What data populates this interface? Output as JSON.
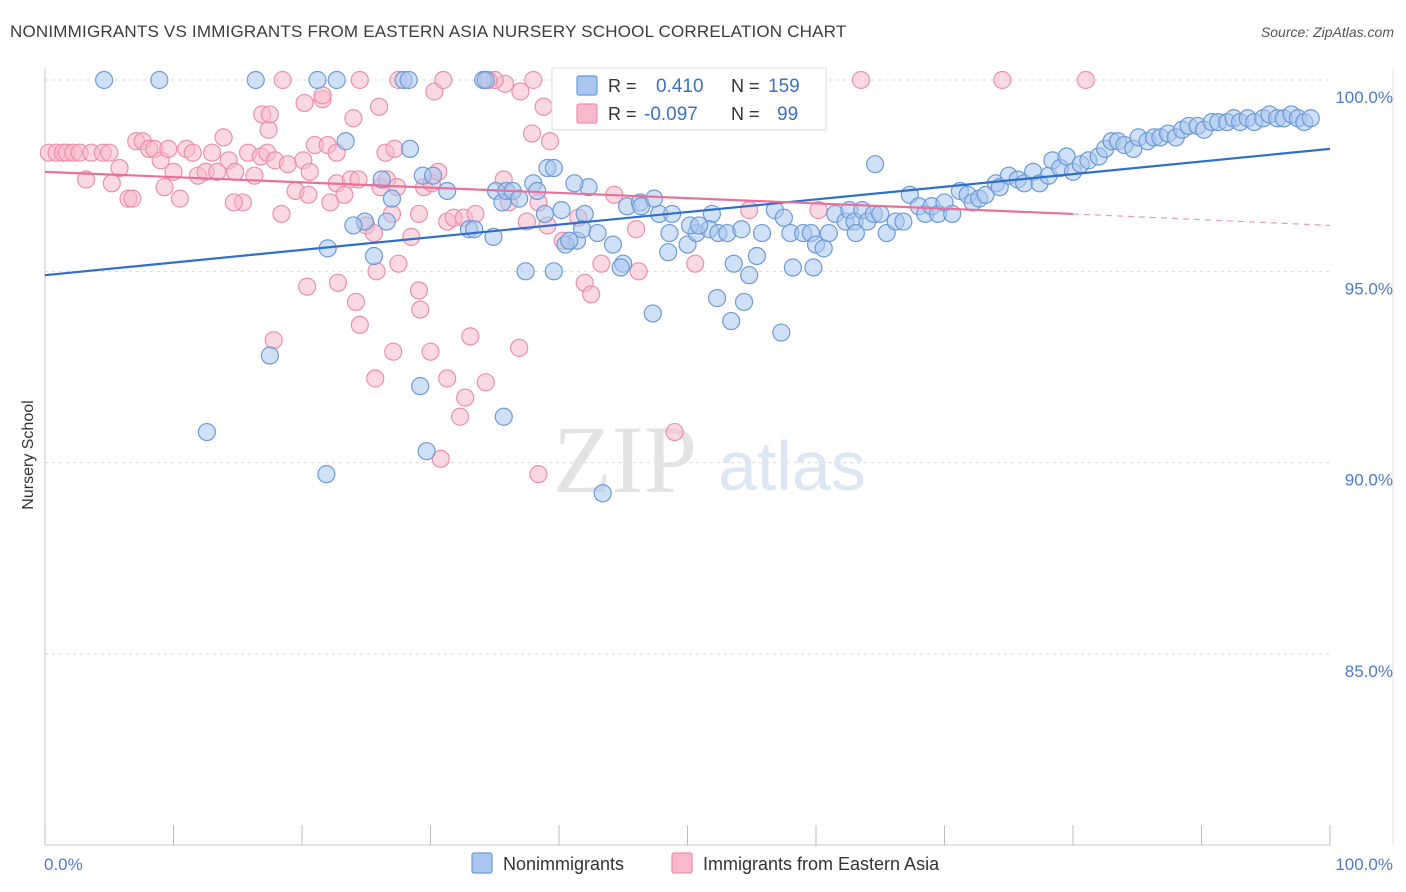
{
  "title": "NONIMMIGRANTS VS IMMIGRANTS FROM EASTERN ASIA NURSERY SCHOOL CORRELATION CHART",
  "source": "Source: ZipAtlas.com",
  "watermark": {
    "zip": "ZIP",
    "atlas": "atlas"
  },
  "colors": {
    "blue_fill": "#a9c6ef",
    "blue_stroke": "#6b9bd8",
    "blue_line": "#2f6fcb",
    "pink_fill": "#f7b9cb",
    "pink_stroke": "#ec8fae",
    "pink_line": "#e8709a",
    "tick_text": "#4a7cc9"
  },
  "legend_box": {
    "row1": {
      "r_label": "R =",
      "r_value": "0.410",
      "n_label": "N =",
      "n_value": "159"
    },
    "row2": {
      "r_label": "R =",
      "r_value": "-0.097",
      "n_label": "N =",
      "n_value": "99"
    }
  },
  "chart_data": {
    "type": "scatter",
    "title": "NONIMMIGRANTS VS IMMIGRANTS FROM EASTERN ASIA NURSERY SCHOOL CORRELATION CHART",
    "xlabel": "",
    "ylabel": "Nursery School",
    "xlim": [
      0,
      100
    ],
    "ylim": [
      80.5,
      100.5
    ],
    "x_tick_labels": [
      "0.0%",
      "100.0%"
    ],
    "y_ticks": [
      85,
      90,
      95,
      100
    ],
    "y_tick_labels": [
      "85.0%",
      "90.0%",
      "95.0%",
      "100.0%"
    ],
    "grid": true,
    "legend_position": "bottom",
    "series": [
      {
        "name": "Nonimmigrants",
        "color": "#6b9bd8",
        "trend": {
          "x": [
            0,
            100
          ],
          "y": [
            94.9,
            98.2
          ]
        },
        "points": [
          [
            4.6,
            100
          ],
          [
            8.9,
            100
          ],
          [
            16.4,
            100
          ],
          [
            21.2,
            100
          ],
          [
            22.7,
            100
          ],
          [
            27.9,
            100
          ],
          [
            28.3,
            100
          ],
          [
            34.1,
            100
          ],
          [
            34.3,
            100
          ],
          [
            23.4,
            98.4
          ],
          [
            28.4,
            98.2
          ],
          [
            29.4,
            97.5
          ],
          [
            30.2,
            97.5
          ],
          [
            26.2,
            97.4
          ],
          [
            31.3,
            97.1
          ],
          [
            27.0,
            96.9
          ],
          [
            24.9,
            96.3
          ],
          [
            26.6,
            96.3
          ],
          [
            24.0,
            96.2
          ],
          [
            22.0,
            95.6
          ],
          [
            25.6,
            95.4
          ],
          [
            33.0,
            96.1
          ],
          [
            33.4,
            96.1
          ],
          [
            34.9,
            95.9
          ],
          [
            35.1,
            97.1
          ],
          [
            35.6,
            96.8
          ],
          [
            35.9,
            97.1
          ],
          [
            36.4,
            97.1
          ],
          [
            38.0,
            97.3
          ],
          [
            39.1,
            97.7
          ],
          [
            39.6,
            97.7
          ],
          [
            42.3,
            97.2
          ],
          [
            42.0,
            96.5
          ],
          [
            41.4,
            95.8
          ],
          [
            40.5,
            95.7
          ],
          [
            40.8,
            95.8
          ],
          [
            41.8,
            96.1
          ],
          [
            44.2,
            95.7
          ],
          [
            45.3,
            96.7
          ],
          [
            46.3,
            96.8
          ],
          [
            47.8,
            96.5
          ],
          [
            48.8,
            96.5
          ],
          [
            48.6,
            96.0
          ],
          [
            50.0,
            95.7
          ],
          [
            50.7,
            96.0
          ],
          [
            51.9,
            96.5
          ],
          [
            51.7,
            96.1
          ],
          [
            52.4,
            96.0
          ],
          [
            53.1,
            96.0
          ],
          [
            53.6,
            95.2
          ],
          [
            54.2,
            96.1
          ],
          [
            54.8,
            94.9
          ],
          [
            54.4,
            94.2
          ],
          [
            55.4,
            95.4
          ],
          [
            55.8,
            96.0
          ],
          [
            56.8,
            96.6
          ],
          [
            57.5,
            96.4
          ],
          [
            58.0,
            96.0
          ],
          [
            59.0,
            96.0
          ],
          [
            59.6,
            96.0
          ],
          [
            60.0,
            95.7
          ],
          [
            60.6,
            95.6
          ],
          [
            61.0,
            96.0
          ],
          [
            61.5,
            96.5
          ],
          [
            62.3,
            96.3
          ],
          [
            62.6,
            96.6
          ],
          [
            63.0,
            96.3
          ],
          [
            63.6,
            96.6
          ],
          [
            64.0,
            96.3
          ],
          [
            64.5,
            96.5
          ],
          [
            65.0,
            96.5
          ],
          [
            65.5,
            96.0
          ],
          [
            66.2,
            96.3
          ],
          [
            66.8,
            96.3
          ],
          [
            67.3,
            97.0
          ],
          [
            68.0,
            96.7
          ],
          [
            68.5,
            96.5
          ],
          [
            69.0,
            96.7
          ],
          [
            69.5,
            96.5
          ],
          [
            70.0,
            96.8
          ],
          [
            70.6,
            96.5
          ],
          [
            71.2,
            97.1
          ],
          [
            71.8,
            97.0
          ],
          [
            72.2,
            96.8
          ],
          [
            72.7,
            96.9
          ],
          [
            73.2,
            97.0
          ],
          [
            74.0,
            97.3
          ],
          [
            74.3,
            97.2
          ],
          [
            75.0,
            97.5
          ],
          [
            75.7,
            97.4
          ],
          [
            76.2,
            97.3
          ],
          [
            76.9,
            97.6
          ],
          [
            77.4,
            97.3
          ],
          [
            78.1,
            97.5
          ],
          [
            78.4,
            97.9
          ],
          [
            79.0,
            97.7
          ],
          [
            79.5,
            98.0
          ],
          [
            80.0,
            97.6
          ],
          [
            80.6,
            97.8
          ],
          [
            81.2,
            97.9
          ],
          [
            82.0,
            98.0
          ],
          [
            82.5,
            98.2
          ],
          [
            83.0,
            98.4
          ],
          [
            83.5,
            98.4
          ],
          [
            84.0,
            98.3
          ],
          [
            84.7,
            98.2
          ],
          [
            85.1,
            98.5
          ],
          [
            85.8,
            98.4
          ],
          [
            86.3,
            98.5
          ],
          [
            86.8,
            98.5
          ],
          [
            87.4,
            98.6
          ],
          [
            88.0,
            98.5
          ],
          [
            88.5,
            98.7
          ],
          [
            89.0,
            98.8
          ],
          [
            89.7,
            98.8
          ],
          [
            90.2,
            98.7
          ],
          [
            90.8,
            98.9
          ],
          [
            91.3,
            98.9
          ],
          [
            92.0,
            98.9
          ],
          [
            92.5,
            99.0
          ],
          [
            93.0,
            98.9
          ],
          [
            93.6,
            99.0
          ],
          [
            94.1,
            98.9
          ],
          [
            94.8,
            99.0
          ],
          [
            95.3,
            99.1
          ],
          [
            95.9,
            99.0
          ],
          [
            96.4,
            99.0
          ],
          [
            97.0,
            99.1
          ],
          [
            97.5,
            99.0
          ],
          [
            98.0,
            98.9
          ],
          [
            98.5,
            99.0
          ],
          [
            12.6,
            90.8
          ],
          [
            17.5,
            92.8
          ],
          [
            21.9,
            89.7
          ],
          [
            29.2,
            92.0
          ],
          [
            29.7,
            90.3
          ],
          [
            35.7,
            91.2
          ],
          [
            37.4,
            95.0
          ],
          [
            39.6,
            95.0
          ],
          [
            43.4,
            89.2
          ],
          [
            45.0,
            95.2
          ],
          [
            47.3,
            93.9
          ],
          [
            48.5,
            95.5
          ],
          [
            50.2,
            96.2
          ],
          [
            46.4,
            96.7
          ],
          [
            47.4,
            96.9
          ],
          [
            52.3,
            94.3
          ],
          [
            57.3,
            93.4
          ],
          [
            58.2,
            95.1
          ],
          [
            59.8,
            95.1
          ],
          [
            63.1,
            96.0
          ],
          [
            64.6,
            97.8
          ],
          [
            36.9,
            96.9
          ],
          [
            38.3,
            97.1
          ],
          [
            38.9,
            96.5
          ],
          [
            40.2,
            96.6
          ],
          [
            41.2,
            97.3
          ],
          [
            43.0,
            96.0
          ],
          [
            44.8,
            95.1
          ],
          [
            50.9,
            96.2
          ],
          [
            53.4,
            93.7
          ]
        ]
      },
      {
        "name": "Immigrants from Eastern Asia",
        "color": "#ec8fae",
        "trend": {
          "x": [
            0,
            80
          ],
          "y": [
            97.6,
            96.5
          ]
        },
        "trend_dashed": {
          "x": [
            80,
            100
          ],
          "y": [
            96.5,
            96.2
          ]
        },
        "points": [
          [
            0.3,
            98.1
          ],
          [
            0.9,
            98.1
          ],
          [
            1.4,
            98.1
          ],
          [
            1.7,
            98.1
          ],
          [
            2.2,
            98.1
          ],
          [
            2.7,
            98.1
          ],
          [
            3.6,
            98.1
          ],
          [
            4.5,
            98.1
          ],
          [
            5.0,
            98.1
          ],
          [
            3.2,
            97.4
          ],
          [
            5.2,
            97.3
          ],
          [
            5.8,
            97.7
          ],
          [
            6.5,
            96.9
          ],
          [
            6.8,
            96.9
          ],
          [
            7.1,
            98.4
          ],
          [
            7.6,
            98.4
          ],
          [
            8.1,
            98.2
          ],
          [
            8.5,
            98.2
          ],
          [
            9.0,
            97.9
          ],
          [
            9.3,
            97.2
          ],
          [
            9.6,
            98.2
          ],
          [
            10.0,
            97.6
          ],
          [
            10.5,
            96.9
          ],
          [
            11.0,
            98.2
          ],
          [
            11.5,
            98.1
          ],
          [
            11.9,
            97.5
          ],
          [
            12.5,
            97.6
          ],
          [
            13.0,
            98.1
          ],
          [
            13.4,
            97.6
          ],
          [
            13.9,
            98.5
          ],
          [
            14.3,
            97.9
          ],
          [
            14.8,
            97.6
          ],
          [
            15.4,
            96.8
          ],
          [
            15.8,
            98.1
          ],
          [
            16.3,
            97.5
          ],
          [
            16.8,
            98.0
          ],
          [
            17.3,
            98.1
          ],
          [
            17.9,
            97.9
          ],
          [
            18.4,
            96.5
          ],
          [
            18.9,
            97.8
          ],
          [
            19.5,
            97.1
          ],
          [
            20.1,
            97.9
          ],
          [
            20.6,
            97.6
          ],
          [
            21.0,
            98.3
          ],
          [
            21.6,
            99.5
          ],
          [
            22.2,
            96.8
          ],
          [
            22.7,
            97.3
          ],
          [
            23.3,
            97.0
          ],
          [
            23.8,
            97.4
          ],
          [
            24.4,
            97.4
          ],
          [
            25.0,
            96.2
          ],
          [
            25.6,
            96.0
          ],
          [
            26.1,
            97.2
          ],
          [
            26.6,
            97.4
          ],
          [
            27.0,
            96.5
          ],
          [
            27.4,
            97.2
          ],
          [
            28.5,
            95.9
          ],
          [
            29.1,
            96.5
          ],
          [
            29.5,
            97.2
          ],
          [
            30.1,
            97.3
          ],
          [
            30.6,
            97.6
          ],
          [
            31.3,
            96.3
          ],
          [
            31.8,
            96.4
          ],
          [
            32.6,
            96.4
          ],
          [
            33.5,
            96.5
          ],
          [
            35.7,
            97.4
          ],
          [
            36.1,
            96.8
          ],
          [
            37.5,
            96.3
          ],
          [
            38.4,
            96.8
          ],
          [
            39.1,
            96.2
          ],
          [
            40.3,
            95.8
          ],
          [
            41.5,
            96.4
          ],
          [
            42.0,
            94.7
          ],
          [
            42.5,
            94.4
          ],
          [
            43.3,
            95.2
          ],
          [
            44.3,
            97.0
          ],
          [
            46.0,
            96.1
          ],
          [
            50.6,
            95.2
          ],
          [
            54.8,
            96.6
          ],
          [
            60.2,
            96.6
          ],
          [
            16.9,
            99.1
          ],
          [
            17.4,
            98.7
          ],
          [
            26.0,
            99.3
          ],
          [
            30.3,
            99.7
          ],
          [
            37.0,
            99.7
          ],
          [
            38.8,
            99.3
          ],
          [
            39.3,
            98.4
          ],
          [
            14.7,
            96.8
          ],
          [
            17.5,
            99.1
          ],
          [
            20.2,
            99.4
          ],
          [
            21.6,
            99.6
          ],
          [
            22.0,
            98.3
          ],
          [
            22.7,
            98.1
          ],
          [
            24.0,
            99.0
          ],
          [
            26.5,
            98.1
          ],
          [
            27.2,
            98.2
          ],
          [
            35.8,
            99.9
          ],
          [
            37.9,
            98.6
          ],
          [
            40.7,
            99.3
          ],
          [
            41.4,
            99.2
          ],
          [
            63.5,
            100
          ],
          [
            74.5,
            100
          ],
          [
            81.0,
            100
          ],
          [
            55.0,
            100
          ],
          [
            18.5,
            100
          ],
          [
            24.5,
            100
          ],
          [
            27.5,
            100
          ],
          [
            31.0,
            100
          ],
          [
            35.0,
            100
          ],
          [
            38.0,
            100
          ],
          [
            42.5,
            100
          ],
          [
            45.0,
            100
          ],
          [
            48.0,
            100
          ],
          [
            34.5,
            100
          ],
          [
            53.0,
            100
          ],
          [
            20.5,
            97.0
          ],
          [
            24.2,
            94.2
          ],
          [
            25.8,
            95.0
          ],
          [
            27.5,
            95.2
          ],
          [
            29.1,
            94.5
          ],
          [
            30.0,
            92.9
          ],
          [
            31.3,
            92.2
          ],
          [
            32.3,
            91.2
          ],
          [
            33.1,
            93.3
          ],
          [
            34.3,
            92.1
          ],
          [
            36.9,
            93.0
          ],
          [
            38.4,
            89.7
          ],
          [
            30.8,
            90.1
          ],
          [
            17.8,
            93.2
          ],
          [
            20.4,
            94.6
          ],
          [
            22.8,
            94.7
          ],
          [
            24.5,
            93.6
          ],
          [
            25.7,
            92.2
          ],
          [
            27.1,
            92.9
          ],
          [
            29.2,
            94.0
          ],
          [
            32.7,
            91.7
          ],
          [
            46.2,
            95.0
          ],
          [
            49.0,
            90.8
          ]
        ]
      }
    ]
  }
}
